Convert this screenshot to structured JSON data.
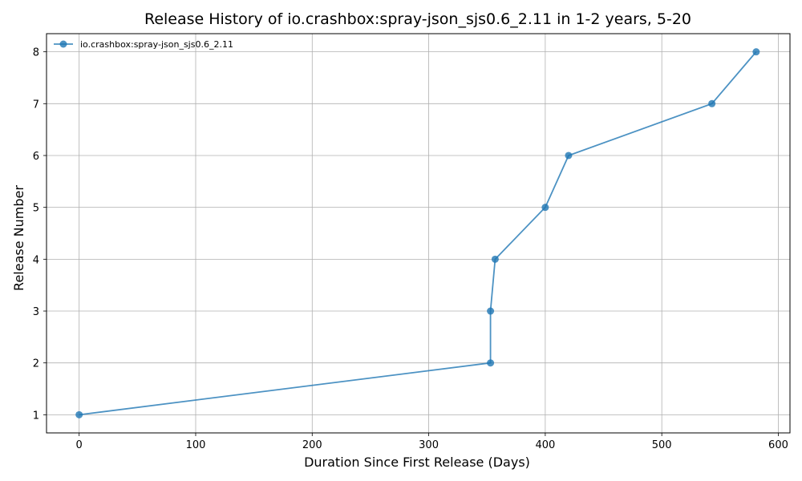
{
  "chart_data": {
    "type": "line",
    "title": "Release History of io.crashbox:spray-json_sjs0.6_2.11 in 1-2 years, 5-20",
    "xlabel": "Duration Since First Release (Days)",
    "ylabel": "Release Number",
    "xlim": [
      -28,
      610
    ],
    "ylim": [
      0.65,
      8.35
    ],
    "xticks": [
      0,
      100,
      200,
      300,
      400,
      500,
      600
    ],
    "yticks": [
      1,
      2,
      3,
      4,
      5,
      6,
      7,
      8
    ],
    "grid": true,
    "legend_position": "top-left",
    "series": [
      {
        "name": "io.crashbox:spray-json_sjs0.6_2.11",
        "color": "#1f77b4",
        "marker": "circle",
        "x": [
          0,
          353,
          353,
          357,
          400,
          420,
          543,
          581
        ],
        "y": [
          1,
          2,
          3,
          4,
          5,
          6,
          7,
          8
        ]
      }
    ]
  }
}
